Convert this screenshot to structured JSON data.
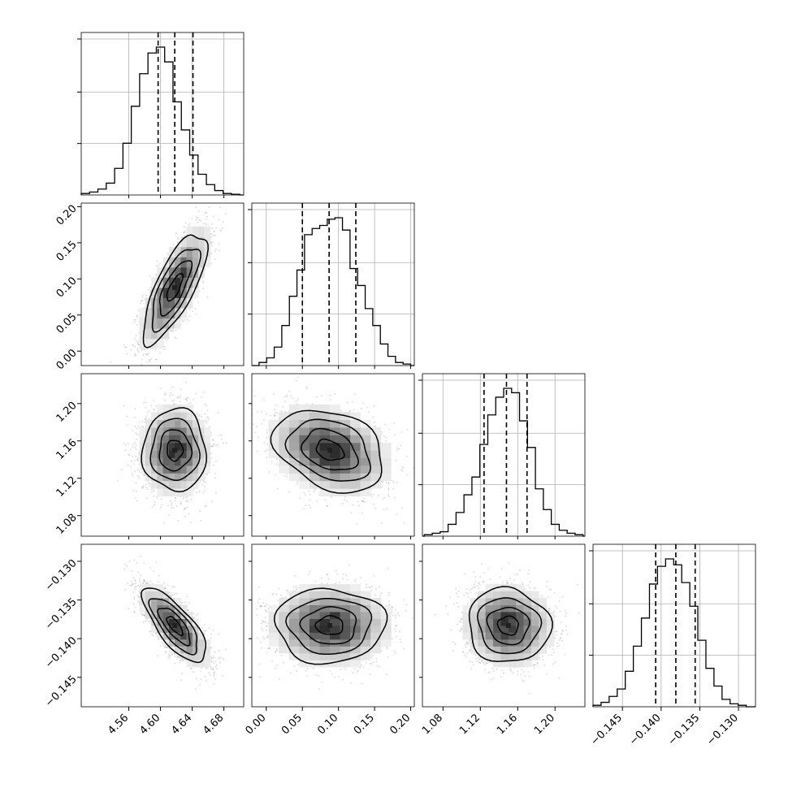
{
  "chart_data": {
    "type": "corner",
    "n_params": 4,
    "grid": true,
    "colors": {
      "line": "#000000",
      "grid": "#b0b0b0",
      "points": "#8a8a8a",
      "fill_light": "#ffffff",
      "fill_dark": "#202020"
    },
    "params": [
      {
        "index": 0,
        "mean": 4.618,
        "std": 0.02,
        "range": [
          4.5,
          4.705
        ],
        "ticks": [
          4.56,
          4.6,
          4.64,
          4.68
        ],
        "tick_labels": [
          "4.56",
          "4.60",
          "4.64",
          "4.68"
        ],
        "quantiles": [
          4.597,
          4.618,
          4.641
        ],
        "hist": [
          1,
          2,
          4,
          8,
          18,
          35,
          60,
          82,
          96,
          100,
          90,
          63,
          44,
          27,
          14,
          7,
          3,
          1,
          0.5
        ],
        "hist_range": [
          4.5,
          4.7
        ]
      },
      {
        "index": 1,
        "mean": 0.088,
        "std": 0.038,
        "range": [
          -0.02,
          0.205
        ],
        "ticks": [
          0.0,
          0.05,
          0.1,
          0.15,
          0.2
        ],
        "tick_labels": [
          "0.00",
          "0.05",
          "0.10",
          "0.15",
          "0.20"
        ],
        "quantiles": [
          0.05,
          0.087,
          0.124
        ],
        "hist": [
          2,
          5,
          12,
          26,
          45,
          62,
          85,
          89,
          91,
          95,
          96,
          88,
          63,
          52,
          37,
          26,
          14,
          6,
          2,
          1
        ],
        "hist_range": [
          -0.01,
          0.2
        ]
      },
      {
        "index": 2,
        "mean": 1.15,
        "std": 0.022,
        "range": [
          1.058,
          1.232
        ],
        "ticks": [
          1.08,
          1.12,
          1.16,
          1.2
        ],
        "tick_labels": [
          "1.08",
          "1.12",
          "1.16",
          "1.20"
        ],
        "quantiles": [
          1.124,
          1.148,
          1.17
        ],
        "hist": [
          1,
          2,
          3,
          8,
          16,
          28,
          40,
          62,
          82,
          94,
          100,
          97,
          78,
          60,
          32,
          18,
          8,
          4,
          2,
          1
        ],
        "hist_range": [
          1.06,
          1.23
        ]
      },
      {
        "index": 3,
        "mean": -0.1383,
        "std": 0.0024,
        "range": [
          -0.1488,
          -0.1278
        ],
        "ticks": [
          -0.145,
          -0.14,
          -0.135,
          -0.13
        ],
        "tick_labels": [
          "−0.145",
          "−0.140",
          "−0.135",
          "−0.130"
        ],
        "quantiles": [
          -0.1407,
          -0.1381,
          -0.1356
        ],
        "hist": [
          1,
          3,
          7,
          12,
          24,
          41,
          60,
          83,
          95,
          100,
          96,
          84,
          68,
          45,
          26,
          14,
          5,
          2,
          1
        ],
        "hist_range": [
          -0.1488,
          -0.129
        ]
      }
    ],
    "pairs": [
      {
        "x": 0,
        "y": 1,
        "correlation": 0.75
      },
      {
        "x": 0,
        "y": 2,
        "correlation": 0.0
      },
      {
        "x": 1,
        "y": 2,
        "correlation": -0.3
      },
      {
        "x": 0,
        "y": 3,
        "correlation": -0.75
      },
      {
        "x": 1,
        "y": 3,
        "correlation": 0.0
      },
      {
        "x": 2,
        "y": 3,
        "correlation": -0.05
      }
    ],
    "contour_levels_sigma": [
      0.5,
      1.0,
      1.5,
      2.0
    ]
  }
}
